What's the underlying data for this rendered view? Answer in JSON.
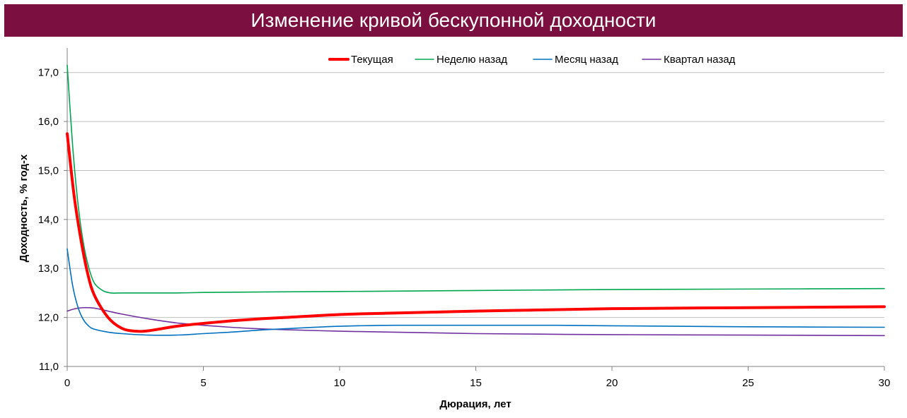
{
  "chart_data": {
    "type": "line",
    "title": "Изменение кривой бескупонной доходности",
    "xlabel": "Дюрация, лет",
    "ylabel": "Доходность, % год-х",
    "xlim": [
      0,
      30
    ],
    "ylim": [
      11.0,
      17.5
    ],
    "xticks": [
      0,
      5,
      10,
      15,
      20,
      25,
      30
    ],
    "xtick_labels": [
      "0",
      "5",
      "10",
      "15",
      "20",
      "25",
      "30"
    ],
    "yticks": [
      11,
      12,
      13,
      14,
      15,
      16,
      17
    ],
    "ytick_labels": [
      "11,0",
      "12,0",
      "13,0",
      "14,0",
      "15,0",
      "16,0",
      "17,0"
    ],
    "grid": "horizontal",
    "legend_position": "top",
    "series": [
      {
        "name": "Текущая",
        "color": "#ff0000",
        "x": [
          0,
          0.25,
          0.5,
          0.75,
          1,
          1.5,
          2,
          2.5,
          3,
          4,
          5,
          6,
          7,
          8,
          10,
          12,
          15,
          17,
          20,
          25,
          30
        ],
        "y": [
          15.75,
          14.5,
          13.6,
          12.9,
          12.45,
          12.0,
          11.78,
          11.72,
          11.73,
          11.82,
          11.88,
          11.93,
          11.97,
          12.0,
          12.06,
          12.09,
          12.13,
          12.15,
          12.18,
          12.2,
          12.22
        ]
      },
      {
        "name": "Неделю назад",
        "color": "#00a651",
        "x": [
          0,
          0.2,
          0.4,
          0.6,
          0.8,
          1,
          1.3,
          1.6,
          2,
          3,
          4,
          5,
          7,
          10,
          15,
          20,
          25,
          30
        ],
        "y": [
          17.15,
          15.5,
          14.3,
          13.5,
          13.0,
          12.7,
          12.55,
          12.5,
          12.5,
          12.5,
          12.5,
          12.51,
          12.52,
          12.53,
          12.55,
          12.57,
          12.58,
          12.59
        ]
      },
      {
        "name": "Месяц назад",
        "color": "#0070c0",
        "x": [
          0,
          0.2,
          0.4,
          0.6,
          0.8,
          1,
          1.5,
          2,
          3,
          4,
          5,
          6,
          7,
          8,
          10,
          12,
          15,
          18,
          20,
          25,
          30
        ],
        "y": [
          13.4,
          12.65,
          12.2,
          11.95,
          11.82,
          11.76,
          11.7,
          11.67,
          11.64,
          11.64,
          11.67,
          11.7,
          11.74,
          11.77,
          11.82,
          11.84,
          11.84,
          11.84,
          11.83,
          11.81,
          11.8
        ]
      },
      {
        "name": "Квартал назад",
        "color": "#7030a0",
        "x": [
          0,
          0.3,
          0.6,
          1,
          1.5,
          2,
          3,
          4,
          5,
          6,
          7,
          8,
          10,
          12,
          15,
          20,
          25,
          30
        ],
        "y": [
          12.13,
          12.18,
          12.2,
          12.19,
          12.13,
          12.07,
          11.97,
          11.89,
          11.84,
          11.8,
          11.77,
          11.75,
          11.72,
          11.7,
          11.67,
          11.65,
          11.64,
          11.63
        ]
      }
    ]
  }
}
